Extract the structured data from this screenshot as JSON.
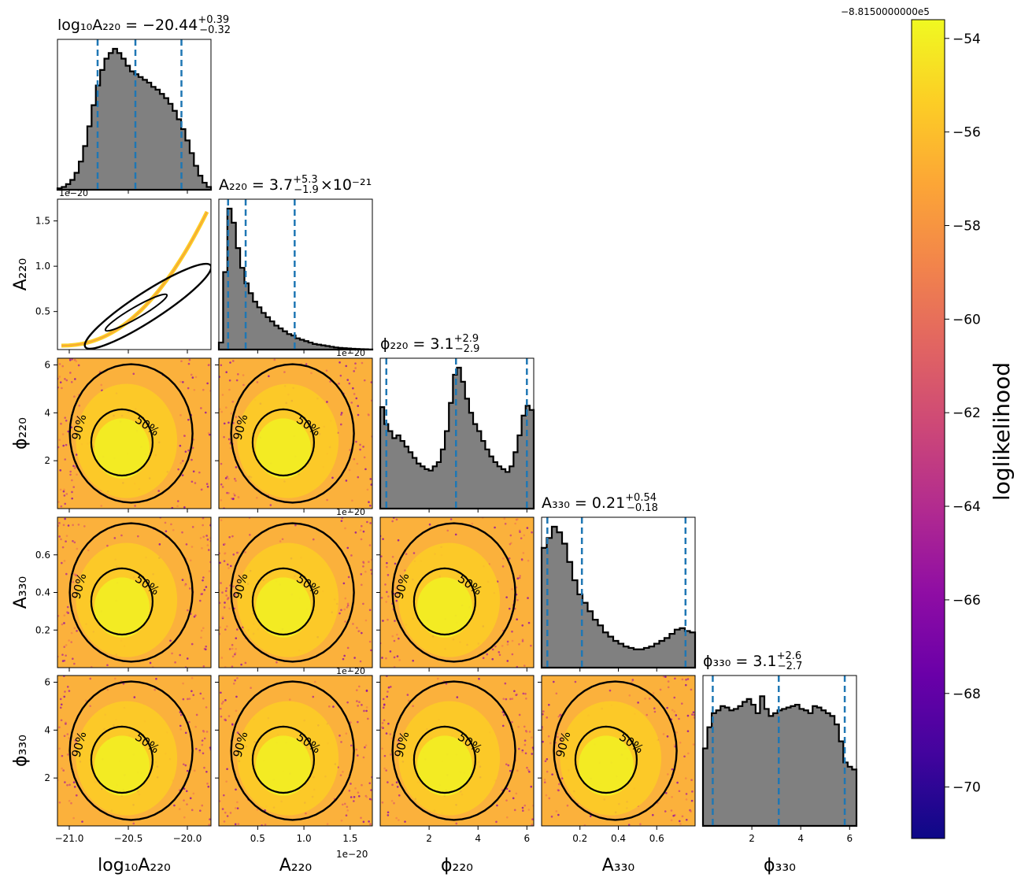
{
  "chart_data": {
    "type": "corner",
    "parameters": [
      {
        "key": "log10A220",
        "axis_label": "log₁₀A₂₂₀",
        "title": {
          "lhs": "log₁₀A₂₂₀ = −20.44",
          "sup": "+0.39",
          "sub": "−0.32",
          "tail": ""
        },
        "range": [
          -21.1,
          -19.8
        ],
        "ticks": [
          -21.0,
          -20.5,
          -20.0
        ],
        "tick_labels": [
          "−21.0",
          "−20.5",
          "−20.0"
        ],
        "quantiles": [
          -20.76,
          -20.44,
          -20.05
        ],
        "offset_text": ""
      },
      {
        "key": "A220",
        "axis_label": "A₂₂₀",
        "title": {
          "lhs": "A₂₂₀ = 3.7",
          "sup": "+5.3",
          "sub": "−1.9",
          "tail": "×10⁻²¹"
        },
        "range": [
          0.08,
          1.74
        ],
        "ticks": [
          0.5,
          1.0,
          1.5
        ],
        "tick_labels": [
          "0.5",
          "1.0",
          "1.5"
        ],
        "quantiles": [
          0.18,
          0.37,
          0.9
        ],
        "offset_text": "1e−20"
      },
      {
        "key": "phi220",
        "axis_label": "ϕ₂₂₀",
        "title": {
          "lhs": "ϕ₂₂₀ = 3.1",
          "sup": "+2.9",
          "sub": "−2.9",
          "tail": ""
        },
        "range": [
          0.0,
          6.28
        ],
        "ticks": [
          2,
          4,
          6
        ],
        "tick_labels": [
          "2",
          "4",
          "6"
        ],
        "quantiles": [
          0.25,
          3.1,
          6.0
        ],
        "offset_text": ""
      },
      {
        "key": "A330",
        "axis_label": "A₃₃₀",
        "title": {
          "lhs": "A₃₃₀ = 0.21",
          "sup": "+0.54",
          "sub": "−0.18",
          "tail": ""
        },
        "range": [
          0.0,
          0.8
        ],
        "ticks": [
          0.2,
          0.4,
          0.6
        ],
        "tick_labels": [
          "0.2",
          "0.4",
          "0.6"
        ],
        "quantiles": [
          0.03,
          0.21,
          0.75
        ],
        "offset_text": ""
      },
      {
        "key": "phi330",
        "axis_label": "ϕ₃₃₀",
        "title": {
          "lhs": "ϕ₃₃₀ = 3.1",
          "sup": "+2.6",
          "sub": "−2.7",
          "tail": ""
        },
        "range": [
          0.0,
          6.28
        ],
        "ticks": [
          2,
          4,
          6
        ],
        "tick_labels": [
          "2",
          "4",
          "6"
        ],
        "quantiles": [
          0.4,
          3.1,
          5.8
        ],
        "offset_text": ""
      }
    ],
    "histograms": {
      "log10A220": [
        0.01,
        0.02,
        0.04,
        0.07,
        0.12,
        0.2,
        0.31,
        0.45,
        0.6,
        0.74,
        0.85,
        0.93,
        0.97,
        1.0,
        0.97,
        0.93,
        0.88,
        0.84,
        0.82,
        0.8,
        0.78,
        0.76,
        0.73,
        0.71,
        0.68,
        0.65,
        0.61,
        0.56,
        0.5,
        0.43,
        0.35,
        0.26,
        0.17,
        0.1,
        0.05,
        0.02
      ],
      "A220": [
        0.05,
        0.55,
        1.0,
        0.9,
        0.72,
        0.58,
        0.47,
        0.4,
        0.34,
        0.3,
        0.26,
        0.23,
        0.2,
        0.17,
        0.15,
        0.13,
        0.11,
        0.1,
        0.08,
        0.07,
        0.06,
        0.05,
        0.04,
        0.035,
        0.03,
        0.025,
        0.02,
        0.015,
        0.012,
        0.01,
        0.008,
        0.006,
        0.004,
        0.003,
        0.002,
        0.001
      ],
      "phi220": [
        0.72,
        0.6,
        0.55,
        0.5,
        0.52,
        0.48,
        0.44,
        0.4,
        0.36,
        0.32,
        0.3,
        0.28,
        0.27,
        0.3,
        0.33,
        0.42,
        0.55,
        0.75,
        0.95,
        1.0,
        0.9,
        0.78,
        0.68,
        0.6,
        0.55,
        0.48,
        0.42,
        0.37,
        0.33,
        0.3,
        0.28,
        0.26,
        0.3,
        0.4,
        0.52,
        0.66,
        0.73,
        0.7
      ],
      "A330": [
        0.85,
        0.92,
        1.0,
        0.96,
        0.88,
        0.75,
        0.62,
        0.52,
        0.46,
        0.4,
        0.34,
        0.3,
        0.25,
        0.22,
        0.19,
        0.17,
        0.15,
        0.14,
        0.13,
        0.13,
        0.14,
        0.15,
        0.17,
        0.19,
        0.21,
        0.24,
        0.27,
        0.28,
        0.26,
        0.25
      ],
      "phi330": [
        0.55,
        0.7,
        0.8,
        0.82,
        0.85,
        0.84,
        0.82,
        0.83,
        0.85,
        0.88,
        0.9,
        0.86,
        0.8,
        0.92,
        0.83,
        0.78,
        0.8,
        0.82,
        0.83,
        0.84,
        0.85,
        0.86,
        0.83,
        0.82,
        0.8,
        0.85,
        0.84,
        0.82,
        0.8,
        0.78,
        0.72,
        0.6,
        0.45,
        0.42,
        0.4
      ]
    },
    "contour_levels": [
      "50%",
      "90%"
    ],
    "colorbar": {
      "label": "loglikelihood",
      "offset_text": "−8.8150000000e5",
      "range": [
        -71.1,
        -53.6
      ],
      "ticks": [
        -70,
        -68,
        -66,
        -64,
        -62,
        -60,
        -58,
        -56,
        -54
      ],
      "tick_labels": [
        "−70",
        "−68",
        "−66",
        "−64",
        "−62",
        "−60",
        "−58",
        "−56",
        "−54"
      ],
      "colormap": "plasma",
      "colors": [
        "#0d0887",
        "#41049d",
        "#6a00a8",
        "#8f0da4",
        "#b12a90",
        "#cc4778",
        "#e16462",
        "#f2844b",
        "#fca636",
        "#fcce25",
        "#f0f921"
      ]
    }
  }
}
